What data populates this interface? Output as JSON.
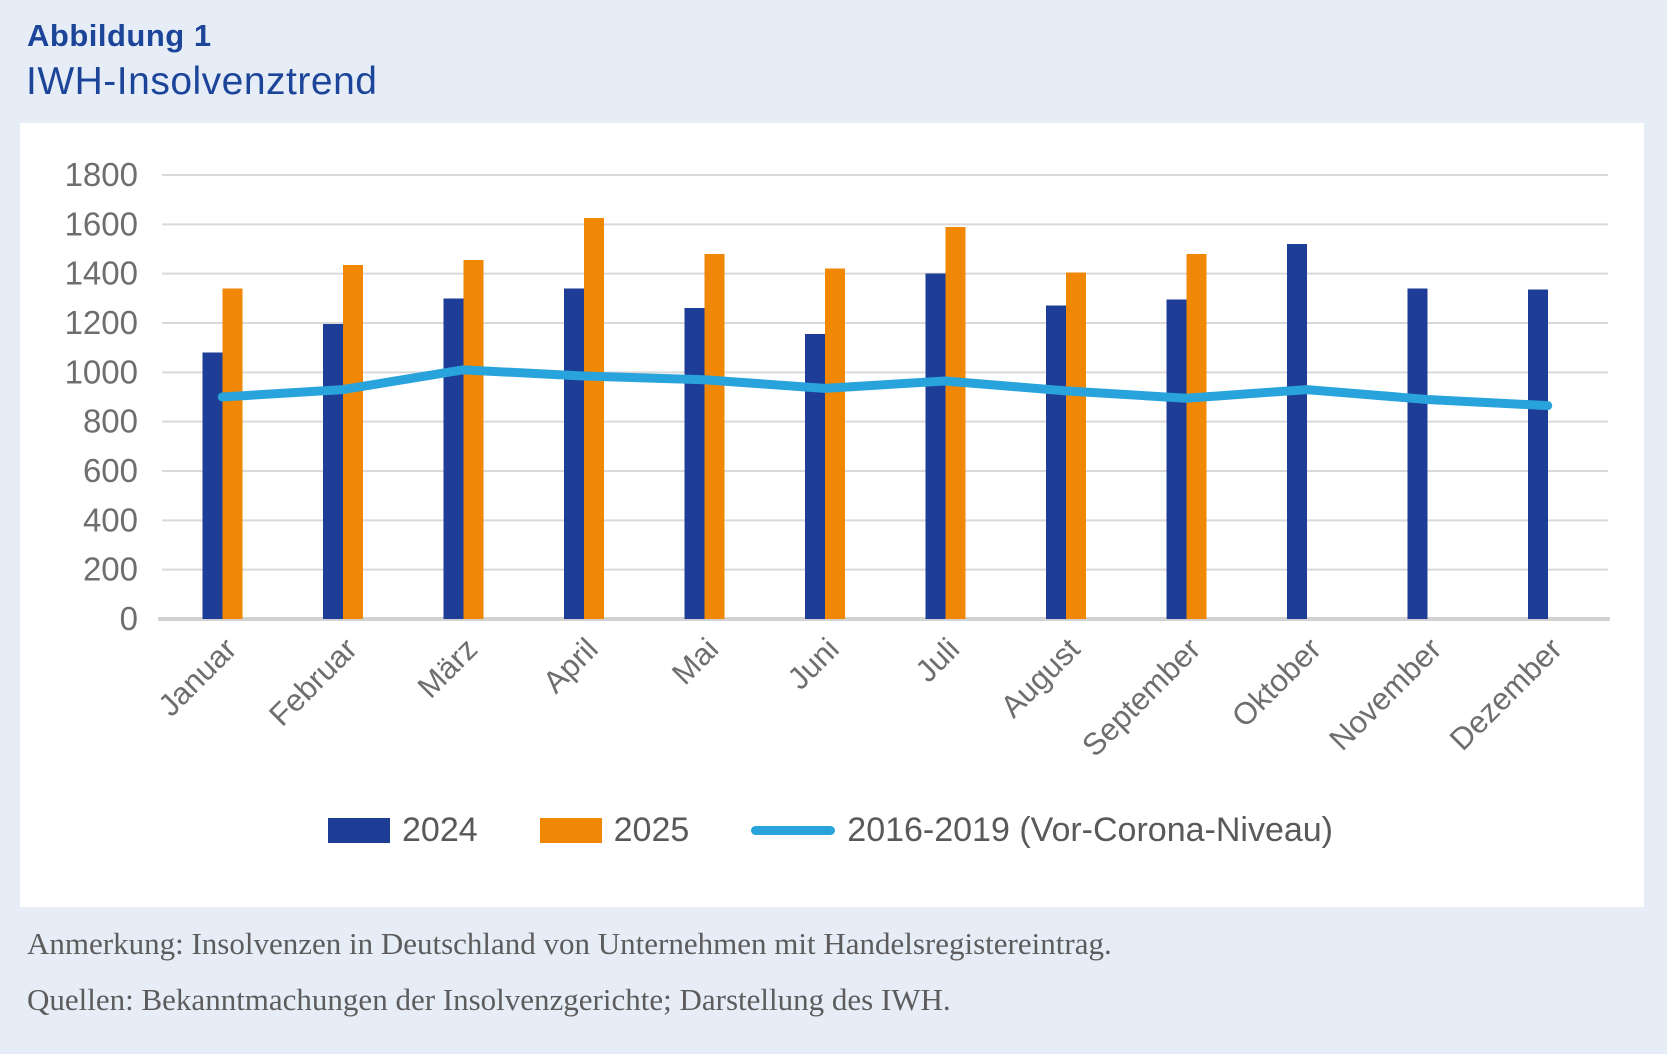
{
  "figure": {
    "label": "Abbildung 1",
    "title": "IWH-Insolvenztrend"
  },
  "notes": {
    "annotation": "Anmerkung: Insolvenzen in Deutschland von Unternehmen mit Handelsregistereintrag.",
    "sources": "Quellen: Bekanntmachungen der Insolvenzgerichte; Darstellung des IWH."
  },
  "colors": {
    "page_background": "#e6edf7",
    "panel_background": "#ffffff",
    "title_blue": "#1c4599",
    "bar_2024": "#1e3d96",
    "bar_2025": "#f08705",
    "trend_line": "#29a3dc",
    "gridline": "#d9d9d9",
    "axis_line": "#d2d2d2",
    "tick_label": "#6e6e6e",
    "legend_text": "#595959"
  },
  "chart_data": {
    "type": "bar",
    "title": "IWH-Insolvenztrend",
    "categories": [
      "Januar",
      "Februar",
      "März",
      "April",
      "Mai",
      "Juni",
      "Juli",
      "August",
      "September",
      "Oktober",
      "November",
      "Dezember"
    ],
    "series": [
      {
        "name": "2024",
        "kind": "bar",
        "color": "#1e3d96",
        "values": [
          1080,
          1195,
          1300,
          1340,
          1260,
          1155,
          1400,
          1270,
          1295,
          1520,
          1340,
          1335
        ]
      },
      {
        "name": "2025",
        "kind": "bar",
        "color": "#f08705",
        "values": [
          1340,
          1435,
          1455,
          1625,
          1480,
          1420,
          1590,
          1405,
          1480,
          null,
          null,
          null
        ]
      },
      {
        "name": "2016-2019 (Vor-Corona-Niveau)",
        "kind": "line",
        "color": "#29a3dc",
        "values": [
          900,
          930,
          1010,
          985,
          970,
          935,
          965,
          925,
          895,
          930,
          890,
          865
        ]
      }
    ],
    "xlabel": "",
    "ylabel": "",
    "ylim": [
      0,
      1800
    ],
    "ytick_step": 200,
    "grid": true,
    "legend_position": "bottom"
  }
}
